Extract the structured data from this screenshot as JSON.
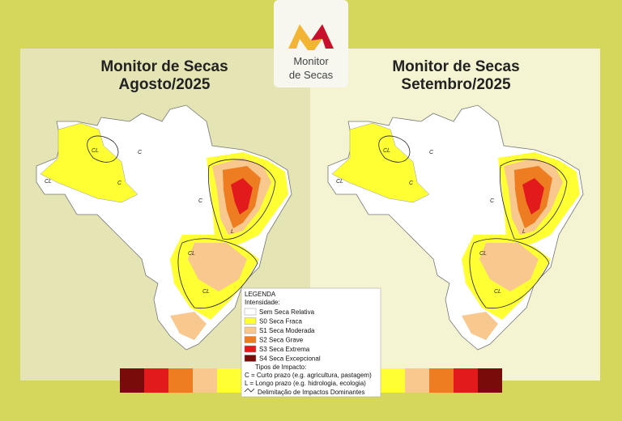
{
  "logo": {
    "line1": "Monitor",
    "line2": "de Secas"
  },
  "panels": [
    {
      "title": "Monitor de Secas",
      "subtitle": "Agosto/2025",
      "map_labels": [
        "CL",
        "C",
        "CL",
        "C",
        "C",
        "CL",
        "L",
        "CL"
      ]
    },
    {
      "title": "Monitor de Secas",
      "subtitle": "Setembro/2025",
      "map_labels": [
        "CL",
        "C",
        "CL",
        "C",
        "C",
        "CL",
        "L",
        "CL"
      ]
    }
  ],
  "legend": {
    "title": "LEGENDA",
    "intensity_title": "Intensidade:",
    "items": [
      "Sem Seca Relativa",
      "S0 Seca Fraca",
      "S1 Seca Moderada",
      "S2 Seca Grave",
      "S3 Seca Extrema",
      "S4 Seca Excepcional"
    ],
    "impact_title": "Tipos de Impacto:",
    "impact_items": [
      "C = Curto prazo (e.g. agricultura, pastagem)",
      "L = Longo prazo (e.g. hidrologia, ecologia)",
      "Delimitação de Impactos Dominantes"
    ]
  }
}
